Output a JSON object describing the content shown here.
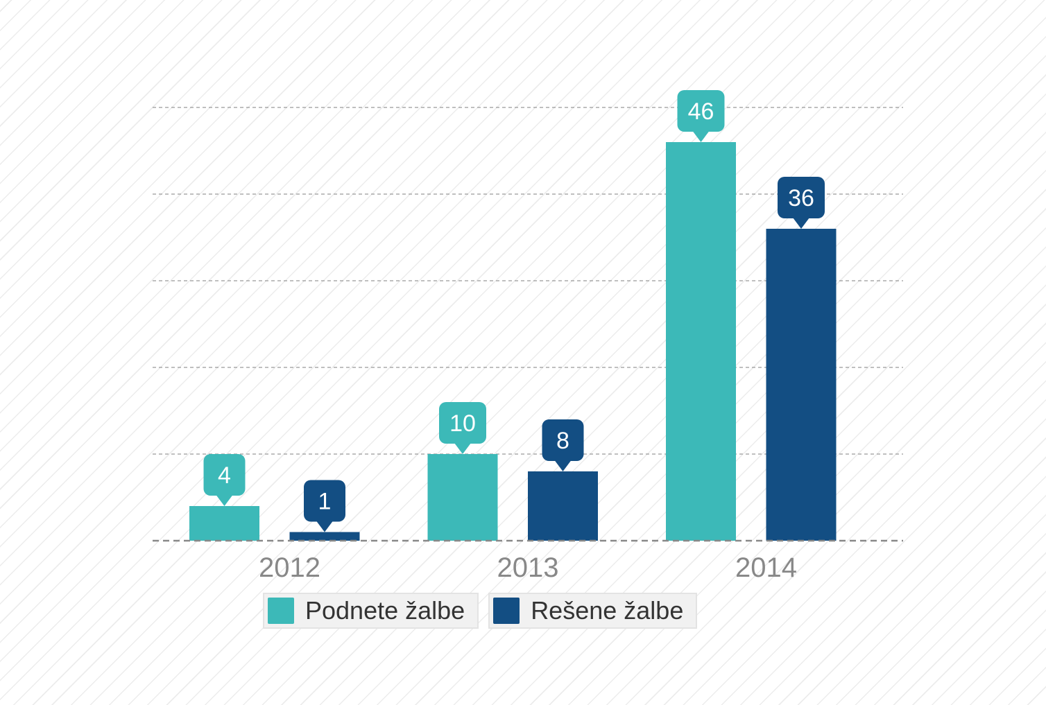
{
  "chart_data": {
    "type": "bar",
    "title": "",
    "xlabel": "",
    "ylabel": "",
    "categories": [
      "2012",
      "2013",
      "2014"
    ],
    "series": [
      {
        "name": "Podnete žalbe",
        "values": [
          4,
          10,
          46
        ],
        "color": "#3cb9b8"
      },
      {
        "name": "Rešene žalbe",
        "values": [
          1,
          8,
          36
        ],
        "color": "#134e83"
      }
    ],
    "ylim": [
      0,
      50
    ],
    "y_grid_step": 10,
    "grid": true,
    "y_tick_labels_shown": false,
    "data_labels": "callout above each bar",
    "legend_placement": "bottom"
  }
}
